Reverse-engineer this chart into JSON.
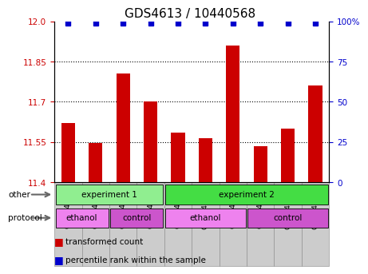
{
  "title": "GDS4613 / 10440568",
  "samples": [
    "GSM847024",
    "GSM847025",
    "GSM847026",
    "GSM847027",
    "GSM847028",
    "GSM847030",
    "GSM847032",
    "GSM847029",
    "GSM847031",
    "GSM847033"
  ],
  "bar_values": [
    11.62,
    11.545,
    11.805,
    11.7,
    11.585,
    11.565,
    11.91,
    11.535,
    11.6,
    11.76
  ],
  "percentile_values": [
    99,
    99,
    99,
    99,
    99,
    99,
    99,
    99,
    99,
    99
  ],
  "ylim": [
    11.4,
    12.0
  ],
  "yticks_left": [
    11.4,
    11.55,
    11.7,
    11.85,
    12.0
  ],
  "yticks_right": [
    0,
    25,
    50,
    75,
    100
  ],
  "bar_color": "#cc0000",
  "dot_color": "#0000cc",
  "grid_lines": [
    11.55,
    11.7,
    11.85
  ],
  "experiment_groups": [
    {
      "label": "experiment 1",
      "start": 0,
      "end": 4,
      "color": "#90ee90"
    },
    {
      "label": "experiment 2",
      "start": 4,
      "end": 10,
      "color": "#44dd44"
    }
  ],
  "protocol_groups": [
    {
      "label": "ethanol",
      "start": 0,
      "end": 2,
      "color": "#ee82ee"
    },
    {
      "label": "control",
      "start": 2,
      "end": 4,
      "color": "#cc55cc"
    },
    {
      "label": "ethanol",
      "start": 4,
      "end": 7,
      "color": "#ee82ee"
    },
    {
      "label": "control",
      "start": 7,
      "end": 10,
      "color": "#cc55cc"
    }
  ],
  "legend_items": [
    {
      "label": "transformed count",
      "color": "#cc0000"
    },
    {
      "label": "percentile rank within the sample",
      "color": "#0000cc"
    }
  ],
  "other_label": "other",
  "protocol_label": "protocol",
  "title_fontsize": 11,
  "tick_fontsize": 7.5,
  "sample_fontsize": 6.5,
  "label_fontsize": 7.5,
  "row_fontsize": 7.5
}
